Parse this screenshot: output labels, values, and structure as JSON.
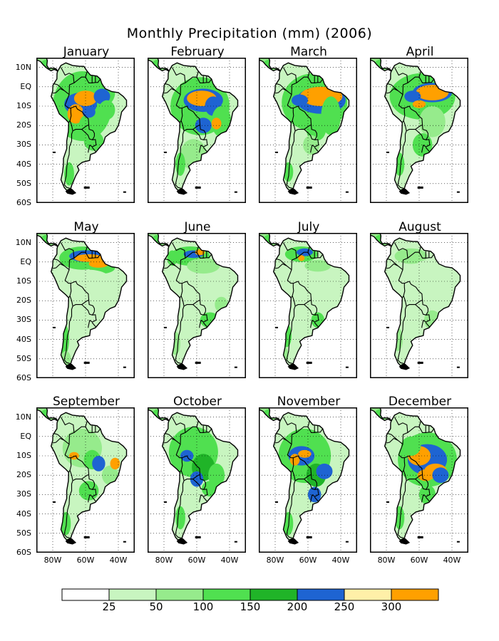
{
  "title": "Monthly Precipitation (mm) (2006)",
  "months": [
    "January",
    "February",
    "March",
    "April",
    "May",
    "June",
    "July",
    "August",
    "September",
    "October",
    "November",
    "December"
  ],
  "lat_labels": [
    "10N",
    "EQ",
    "10S",
    "20S",
    "30S",
    "40S",
    "50S",
    "60S"
  ],
  "lon_labels": [
    "80W",
    "60W",
    "40W"
  ],
  "colorbar": {
    "colors": [
      "#ffffff",
      "#c8f5c0",
      "#96eb8c",
      "#50e050",
      "#20b428",
      "#1e64d2",
      "#fff0a8",
      "#ffa000"
    ],
    "labels": [
      "25",
      "50",
      "100",
      "150",
      "200",
      "250",
      "300"
    ]
  },
  "map_extent": {
    "lon": [
      -90,
      -30
    ],
    "lat": [
      -60,
      15
    ]
  },
  "colors": {
    "land": "#ffffff",
    "coast": "#000000",
    "frame": "#000000"
  }
}
